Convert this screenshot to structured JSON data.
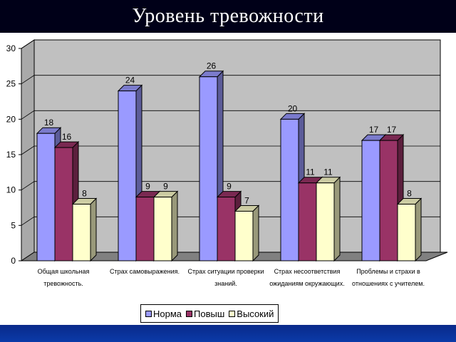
{
  "title": "Уровень тревожности",
  "chart_data": {
    "type": "bar",
    "categories": [
      [
        "Общая школьная",
        "тревожность."
      ],
      [
        "Страх самовыражения."
      ],
      [
        "Страх ситуации проверки",
        "знаний."
      ],
      [
        "Страх несоответствия",
        "ожиданиям окружающих."
      ],
      [
        "Проблемы и страхи в",
        "отношениях с учителем."
      ]
    ],
    "series": [
      {
        "name": "Норма",
        "values": [
          18,
          24,
          26,
          20,
          17
        ],
        "color": "#9a9aff"
      },
      {
        "name": "Повыш",
        "values": [
          16,
          9,
          9,
          11,
          17
        ],
        "color": "#993366"
      },
      {
        "name": "Высокий",
        "values": [
          8,
          9,
          7,
          11,
          8
        ],
        "color": "#ffffcc"
      }
    ],
    "ylim": [
      0,
      30
    ],
    "yticks": [
      0,
      5,
      10,
      15,
      20,
      25,
      30
    ],
    "grid": true,
    "legend_position": "bottom"
  }
}
